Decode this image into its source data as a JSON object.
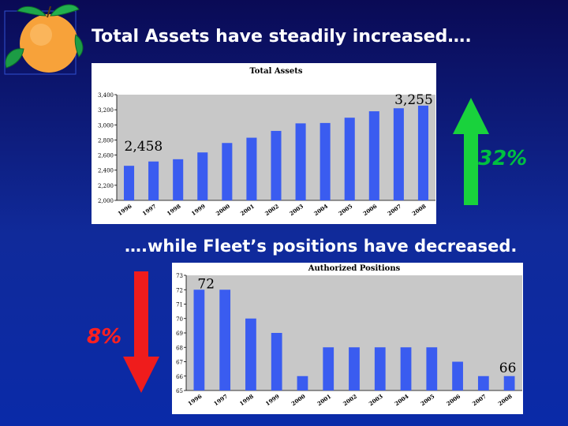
{
  "headings": {
    "top": "Total Assets have steadily increased….",
    "bottom": "….while Fleet’s positions have decreased."
  },
  "changes": {
    "assets_pct": "32%",
    "positions_pct": "8%"
  },
  "colors": {
    "bar": "#3a5cf0",
    "plot_bg": "#c8c8c8",
    "up_arrow": "#19d23c",
    "down_arrow": "#ef1c1c"
  },
  "chart_data": [
    {
      "type": "bar",
      "title": "Total Assets",
      "categories": [
        "1996",
        "1997",
        "1998",
        "1999",
        "2000",
        "2001",
        "2002",
        "2003",
        "2004",
        "2005",
        "2006",
        "2007",
        "2008"
      ],
      "values": [
        2458,
        2515,
        2545,
        2635,
        2760,
        2830,
        2920,
        3020,
        3025,
        3095,
        3180,
        3220,
        3255
      ],
      "ylim": [
        2000,
        3400
      ],
      "yticks": [
        "2,000",
        "2,200",
        "2,400",
        "2,600",
        "2,800",
        "3,000",
        "3,200",
        "3,400"
      ],
      "annotations": [
        {
          "category": "1996",
          "text": "2,458"
        },
        {
          "category": "2008",
          "text": "3,255"
        }
      ],
      "grid": false
    },
    {
      "type": "bar",
      "title": "Authorized Positions",
      "categories": [
        "1996",
        "1997",
        "1998",
        "1999",
        "2000",
        "2001",
        "2002",
        "2003",
        "2004",
        "2005",
        "2006",
        "2007",
        "2008"
      ],
      "values": [
        72,
        72,
        70,
        69,
        66,
        68,
        68,
        68,
        68,
        68,
        67,
        66,
        66
      ],
      "ylim": [
        65,
        73
      ],
      "yticks": [
        "65",
        "66",
        "67",
        "68",
        "69",
        "70",
        "71",
        "72",
        "73"
      ],
      "annotations": [
        {
          "category": "1996",
          "text": "72"
        },
        {
          "category": "2008",
          "text": "66"
        }
      ],
      "grid": false
    }
  ]
}
